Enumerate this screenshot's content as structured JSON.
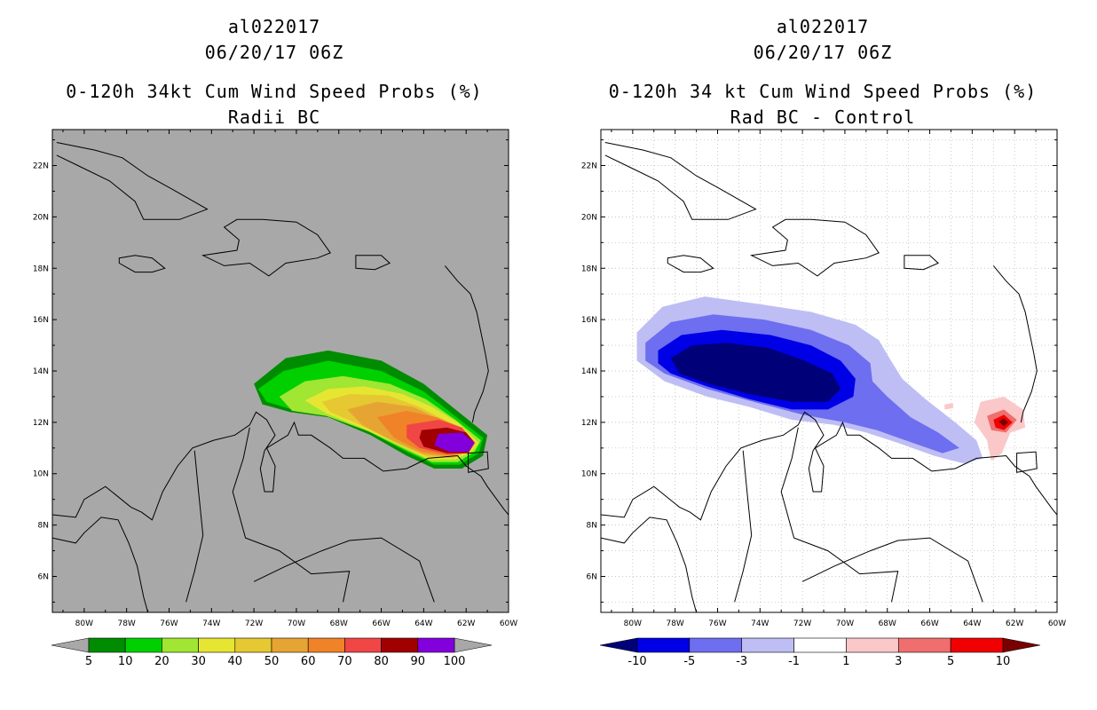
{
  "panels": [
    {
      "id": "left",
      "title_lines": [
        "al022017",
        "06/20/17 06Z",
        "0-120h 34kt Cum Wind Speed Probs (%)",
        "Radii BC"
      ],
      "background": "#a8a8a8",
      "colorbar": {
        "colors": [
          "#008c00",
          "#00d000",
          "#a0e632",
          "#e6e632",
          "#e6c832",
          "#e6a532",
          "#f08228",
          "#f04646",
          "#a00000",
          "#8200dc"
        ],
        "labels": [
          "5",
          "10",
          "20",
          "30",
          "40",
          "50",
          "60",
          "70",
          "80",
          "90",
          "100"
        ],
        "left_arrow": "#a8a8a8",
        "right_arrow": "#a8a8a8"
      }
    },
    {
      "id": "right",
      "title_lines": [
        "al022017",
        "06/20/17 06Z",
        "0-120h 34 kt Cum Wind Speed Probs (%)",
        "Rad BC - Control"
      ],
      "background": "#ffffff",
      "colorbar": {
        "colors": [
          "#0000e6",
          "#6e6ef0",
          "#bebef5",
          "#ffffff",
          "#fac8c8",
          "#f06e6e",
          "#f00000"
        ],
        "labels": [
          "-10",
          "-5",
          "-3",
          "-1",
          "1",
          "3",
          "5",
          "10"
        ],
        "left_arrow": "#000078",
        "right_arrow": "#780000"
      }
    }
  ],
  "axes": {
    "lon_labels": [
      "80W",
      "78W",
      "76W",
      "74W",
      "72W",
      "70W",
      "68W",
      "66W",
      "64W",
      "62W",
      "60W"
    ],
    "lat_labels": [
      "6N",
      "8N",
      "10N",
      "12N",
      "14N",
      "16N",
      "18N",
      "20N",
      "22N"
    ],
    "lon_range": [
      -81.5,
      -60
    ],
    "lat_range": [
      4.6,
      23.4
    ]
  },
  "chart_data": [
    {
      "type": "map-contour",
      "title": "0-120h 34kt Cum Wind Speed Probs (%)",
      "subtitle": "Radii BC",
      "storm": "al022017",
      "date": "06/20/17 06Z",
      "levels": [
        5,
        10,
        20,
        30,
        40,
        50,
        60,
        70,
        80,
        90,
        100
      ],
      "contours": [
        {
          "level": 5,
          "color": "#008c00",
          "polygon": [
            [
              -72,
              13.5
            ],
            [
              -70.5,
              14.5
            ],
            [
              -68.5,
              14.8
            ],
            [
              -66,
              14.4
            ],
            [
              -64,
              13.5
            ],
            [
              -62.5,
              12.5
            ],
            [
              -61,
              11.5
            ],
            [
              -61.2,
              10.7
            ],
            [
              -62.2,
              10.2
            ],
            [
              -63.5,
              10.2
            ],
            [
              -64.8,
              10.7
            ],
            [
              -66.5,
              11.5
            ],
            [
              -68.5,
              12.2
            ],
            [
              -70.3,
              12.4
            ],
            [
              -71.6,
              12.7
            ]
          ]
        },
        {
          "level": 10,
          "color": "#00d000",
          "polygon": [
            [
              -71.8,
              13.3
            ],
            [
              -70.6,
              14.0
            ],
            [
              -68.5,
              14.4
            ],
            [
              -66,
              14.0
            ],
            [
              -64,
              13.2
            ],
            [
              -62.6,
              12.3
            ],
            [
              -61.2,
              11.4
            ],
            [
              -61.4,
              10.8
            ],
            [
              -62.3,
              10.35
            ],
            [
              -63.5,
              10.35
            ],
            [
              -64.8,
              10.85
            ],
            [
              -66.5,
              11.6
            ],
            [
              -68.5,
              12.3
            ],
            [
              -70.2,
              12.5
            ],
            [
              -71.4,
              12.8
            ]
          ]
        },
        {
          "level": 20,
          "color": "#a0e632",
          "polygon": [
            [
              -70.8,
              13.0
            ],
            [
              -69.6,
              13.6
            ],
            [
              -67.8,
              13.8
            ],
            [
              -65.6,
              13.5
            ],
            [
              -63.9,
              12.9
            ],
            [
              -62.5,
              12.1
            ],
            [
              -61.3,
              11.3
            ],
            [
              -61.6,
              10.85
            ],
            [
              -62.4,
              10.45
            ],
            [
              -63.6,
              10.45
            ],
            [
              -64.9,
              10.95
            ],
            [
              -66.6,
              11.65
            ],
            [
              -68.6,
              12.25
            ],
            [
              -70.2,
              12.45
            ]
          ]
        },
        {
          "level": 30,
          "color": "#e6e632",
          "polygon": [
            [
              -69.6,
              12.85
            ],
            [
              -68.5,
              13.3
            ],
            [
              -66.8,
              13.4
            ],
            [
              -65.0,
              13.1
            ],
            [
              -63.6,
              12.6
            ],
            [
              -62.4,
              12.0
            ],
            [
              -61.4,
              11.2
            ],
            [
              -61.7,
              10.9
            ],
            [
              -62.5,
              10.55
            ],
            [
              -63.7,
              10.55
            ],
            [
              -65.0,
              11.05
            ],
            [
              -66.8,
              11.75
            ],
            [
              -68.6,
              12.35
            ]
          ]
        },
        {
          "level": 40,
          "color": "#e6c832",
          "polygon": [
            [
              -68.8,
              12.8
            ],
            [
              -67.5,
              13.1
            ],
            [
              -65.7,
              13.05
            ],
            [
              -64.2,
              12.6
            ],
            [
              -62.8,
              12.0
            ],
            [
              -61.5,
              11.2
            ],
            [
              -61.8,
              10.9
            ],
            [
              -62.6,
              10.6
            ],
            [
              -63.8,
              10.65
            ],
            [
              -65.2,
              11.15
            ],
            [
              -67.0,
              11.9
            ],
            [
              -68.4,
              12.4
            ]
          ]
        },
        {
          "level": 50,
          "color": "#e6a532",
          "polygon": [
            [
              -67.6,
              12.5
            ],
            [
              -66.2,
              12.8
            ],
            [
              -64.5,
              12.6
            ],
            [
              -63.2,
              12.1
            ],
            [
              -62.0,
              11.6
            ],
            [
              -61.6,
              11.2
            ],
            [
              -61.9,
              10.85
            ],
            [
              -62.8,
              10.65
            ],
            [
              -64.0,
              10.75
            ],
            [
              -65.5,
              11.3
            ],
            [
              -66.9,
              11.9
            ]
          ]
        },
        {
          "level": 60,
          "color": "#f08228",
          "polygon": [
            [
              -66.2,
              12.2
            ],
            [
              -64.8,
              12.45
            ],
            [
              -63.4,
              12.2
            ],
            [
              -62.2,
              11.8
            ],
            [
              -61.6,
              11.25
            ],
            [
              -61.9,
              10.85
            ],
            [
              -62.8,
              10.7
            ],
            [
              -64.1,
              10.85
            ],
            [
              -65.4,
              11.4
            ]
          ]
        },
        {
          "level": 70,
          "color": "#f04646",
          "polygon": [
            [
              -64.8,
              11.9
            ],
            [
              -63.3,
              12.1
            ],
            [
              -62.2,
              11.8
            ],
            [
              -61.6,
              11.2
            ],
            [
              -61.9,
              10.8
            ],
            [
              -62.9,
              10.75
            ],
            [
              -64.2,
              11.0
            ],
            [
              -64.8,
              11.4
            ]
          ]
        },
        {
          "level": 80,
          "color": "#a00000",
          "polygon": [
            [
              -64.1,
              11.7
            ],
            [
              -62.9,
              11.8
            ],
            [
              -62.0,
              11.6
            ],
            [
              -61.6,
              11.2
            ],
            [
              -61.9,
              10.8
            ],
            [
              -62.9,
              10.8
            ],
            [
              -64.0,
              11.05
            ],
            [
              -64.2,
              11.4
            ]
          ]
        },
        {
          "level": 90,
          "color": "#8200dc",
          "polygon": [
            [
              -63.3,
              11.55
            ],
            [
              -62.2,
              11.6
            ],
            [
              -61.6,
              11.2
            ],
            [
              -61.9,
              10.85
            ],
            [
              -62.8,
              10.85
            ],
            [
              -63.5,
              11.1
            ]
          ]
        }
      ]
    },
    {
      "type": "map-contour",
      "title": "0-120h 34 kt Cum Wind Speed Probs (%)",
      "subtitle": "Rad BC - Control",
      "storm": "al022017",
      "date": "06/20/17 06Z",
      "levels": [
        -10,
        -5,
        -3,
        -1,
        1,
        3,
        5,
        10
      ],
      "contours": [
        {
          "level": -1,
          "color": "#bebef5",
          "polygon": [
            [
              -79.8,
              15.5
            ],
            [
              -78.6,
              16.5
            ],
            [
              -76.6,
              16.9
            ],
            [
              -74,
              16.6
            ],
            [
              -71.6,
              16.3
            ],
            [
              -69.5,
              15.8
            ],
            [
              -68.4,
              15.2
            ],
            [
              -67.9,
              14.5
            ],
            [
              -67.3,
              13.7
            ],
            [
              -66.2,
              12.9
            ],
            [
              -64.8,
              12.0
            ],
            [
              -63.8,
              11.3
            ],
            [
              -63.5,
              10.6
            ],
            [
              -64.4,
              10.4
            ],
            [
              -65.8,
              10.7
            ],
            [
              -67.5,
              11.2
            ],
            [
              -69,
              11.6
            ],
            [
              -70.5,
              11.9
            ],
            [
              -72.5,
              12.1
            ],
            [
              -74.5,
              12.6
            ],
            [
              -76.5,
              13.0
            ],
            [
              -78.5,
              13.6
            ],
            [
              -79.8,
              14.4
            ]
          ]
        },
        {
          "level": -3,
          "color": "#6e6ef0",
          "polygon": [
            [
              -79.4,
              15.1
            ],
            [
              -78.2,
              15.9
            ],
            [
              -76.2,
              16.2
            ],
            [
              -73.8,
              16.0
            ],
            [
              -71.6,
              15.6
            ],
            [
              -69.8,
              15.0
            ],
            [
              -68.8,
              14.3
            ],
            [
              -68.7,
              13.6
            ],
            [
              -68.0,
              13.0
            ],
            [
              -66.9,
              12.2
            ],
            [
              -65.6,
              11.6
            ],
            [
              -64.6,
              11.0
            ],
            [
              -65.4,
              10.8
            ],
            [
              -66.8,
              11.2
            ],
            [
              -68.5,
              11.7
            ],
            [
              -70,
              12.0
            ],
            [
              -72,
              12.3
            ],
            [
              -74.3,
              12.8
            ],
            [
              -76.5,
              13.3
            ],
            [
              -78.5,
              13.9
            ],
            [
              -79.4,
              14.4
            ]
          ]
        },
        {
          "level": -5,
          "color": "#0000e6",
          "polygon": [
            [
              -78.8,
              14.8
            ],
            [
              -77.7,
              15.4
            ],
            [
              -75.8,
              15.6
            ],
            [
              -73.5,
              15.4
            ],
            [
              -71.6,
              15.0
            ],
            [
              -70.2,
              14.4
            ],
            [
              -69.5,
              13.7
            ],
            [
              -69.6,
              13.0
            ],
            [
              -70.8,
              12.5
            ],
            [
              -72.5,
              12.5
            ],
            [
              -74.5,
              12.9
            ],
            [
              -76.5,
              13.4
            ],
            [
              -78.2,
              13.9
            ],
            [
              -78.8,
              14.3
            ]
          ]
        },
        {
          "level": -10,
          "color": "#000078",
          "polygon": [
            [
              -78.2,
              14.5
            ],
            [
              -77.2,
              15.0
            ],
            [
              -75.6,
              15.1
            ],
            [
              -73.6,
              14.9
            ],
            [
              -71.9,
              14.4
            ],
            [
              -70.6,
              13.9
            ],
            [
              -70.2,
              13.3
            ],
            [
              -70.8,
              12.8
            ],
            [
              -72.5,
              12.8
            ],
            [
              -74.5,
              13.1
            ],
            [
              -76.4,
              13.5
            ],
            [
              -77.8,
              13.9
            ]
          ]
        },
        {
          "level": 1,
          "color": "#fac8c8",
          "polygon": [
            [
              -63.6,
              12.8
            ],
            [
              -62.5,
              13.0
            ],
            [
              -61.6,
              12.5
            ],
            [
              -61.5,
              11.8
            ],
            [
              -62.2,
              11.6
            ],
            [
              -62.6,
              10.8
            ],
            [
              -63.1,
              10.5
            ],
            [
              -63.3,
              11.3
            ],
            [
              -63.9,
              12.0
            ]
          ]
        },
        {
          "level": 1,
          "color": "#fac8c8",
          "polygon": [
            [
              -65.3,
              12.7
            ],
            [
              -64.9,
              12.75
            ],
            [
              -64.9,
              12.55
            ],
            [
              -65.3,
              12.5
            ]
          ]
        },
        {
          "level": 3,
          "color": "#f06e6e",
          "polygon": [
            [
              -63.3,
              12.25
            ],
            [
              -62.5,
              12.5
            ],
            [
              -61.9,
              12.1
            ],
            [
              -62.4,
              11.6
            ],
            [
              -63.1,
              11.7
            ]
          ]
        },
        {
          "level": 5,
          "color": "#f00000",
          "polygon": [
            [
              -63.0,
              12.1
            ],
            [
              -62.5,
              12.3
            ],
            [
              -62.1,
              12.0
            ],
            [
              -62.5,
              11.7
            ],
            [
              -62.9,
              11.8
            ]
          ]
        },
        {
          "level": 10,
          "color": "#780000",
          "polygon": [
            [
              -62.75,
              12.03
            ],
            [
              -62.5,
              12.15
            ],
            [
              -62.3,
              12.0
            ],
            [
              -62.5,
              11.85
            ]
          ]
        }
      ]
    }
  ]
}
